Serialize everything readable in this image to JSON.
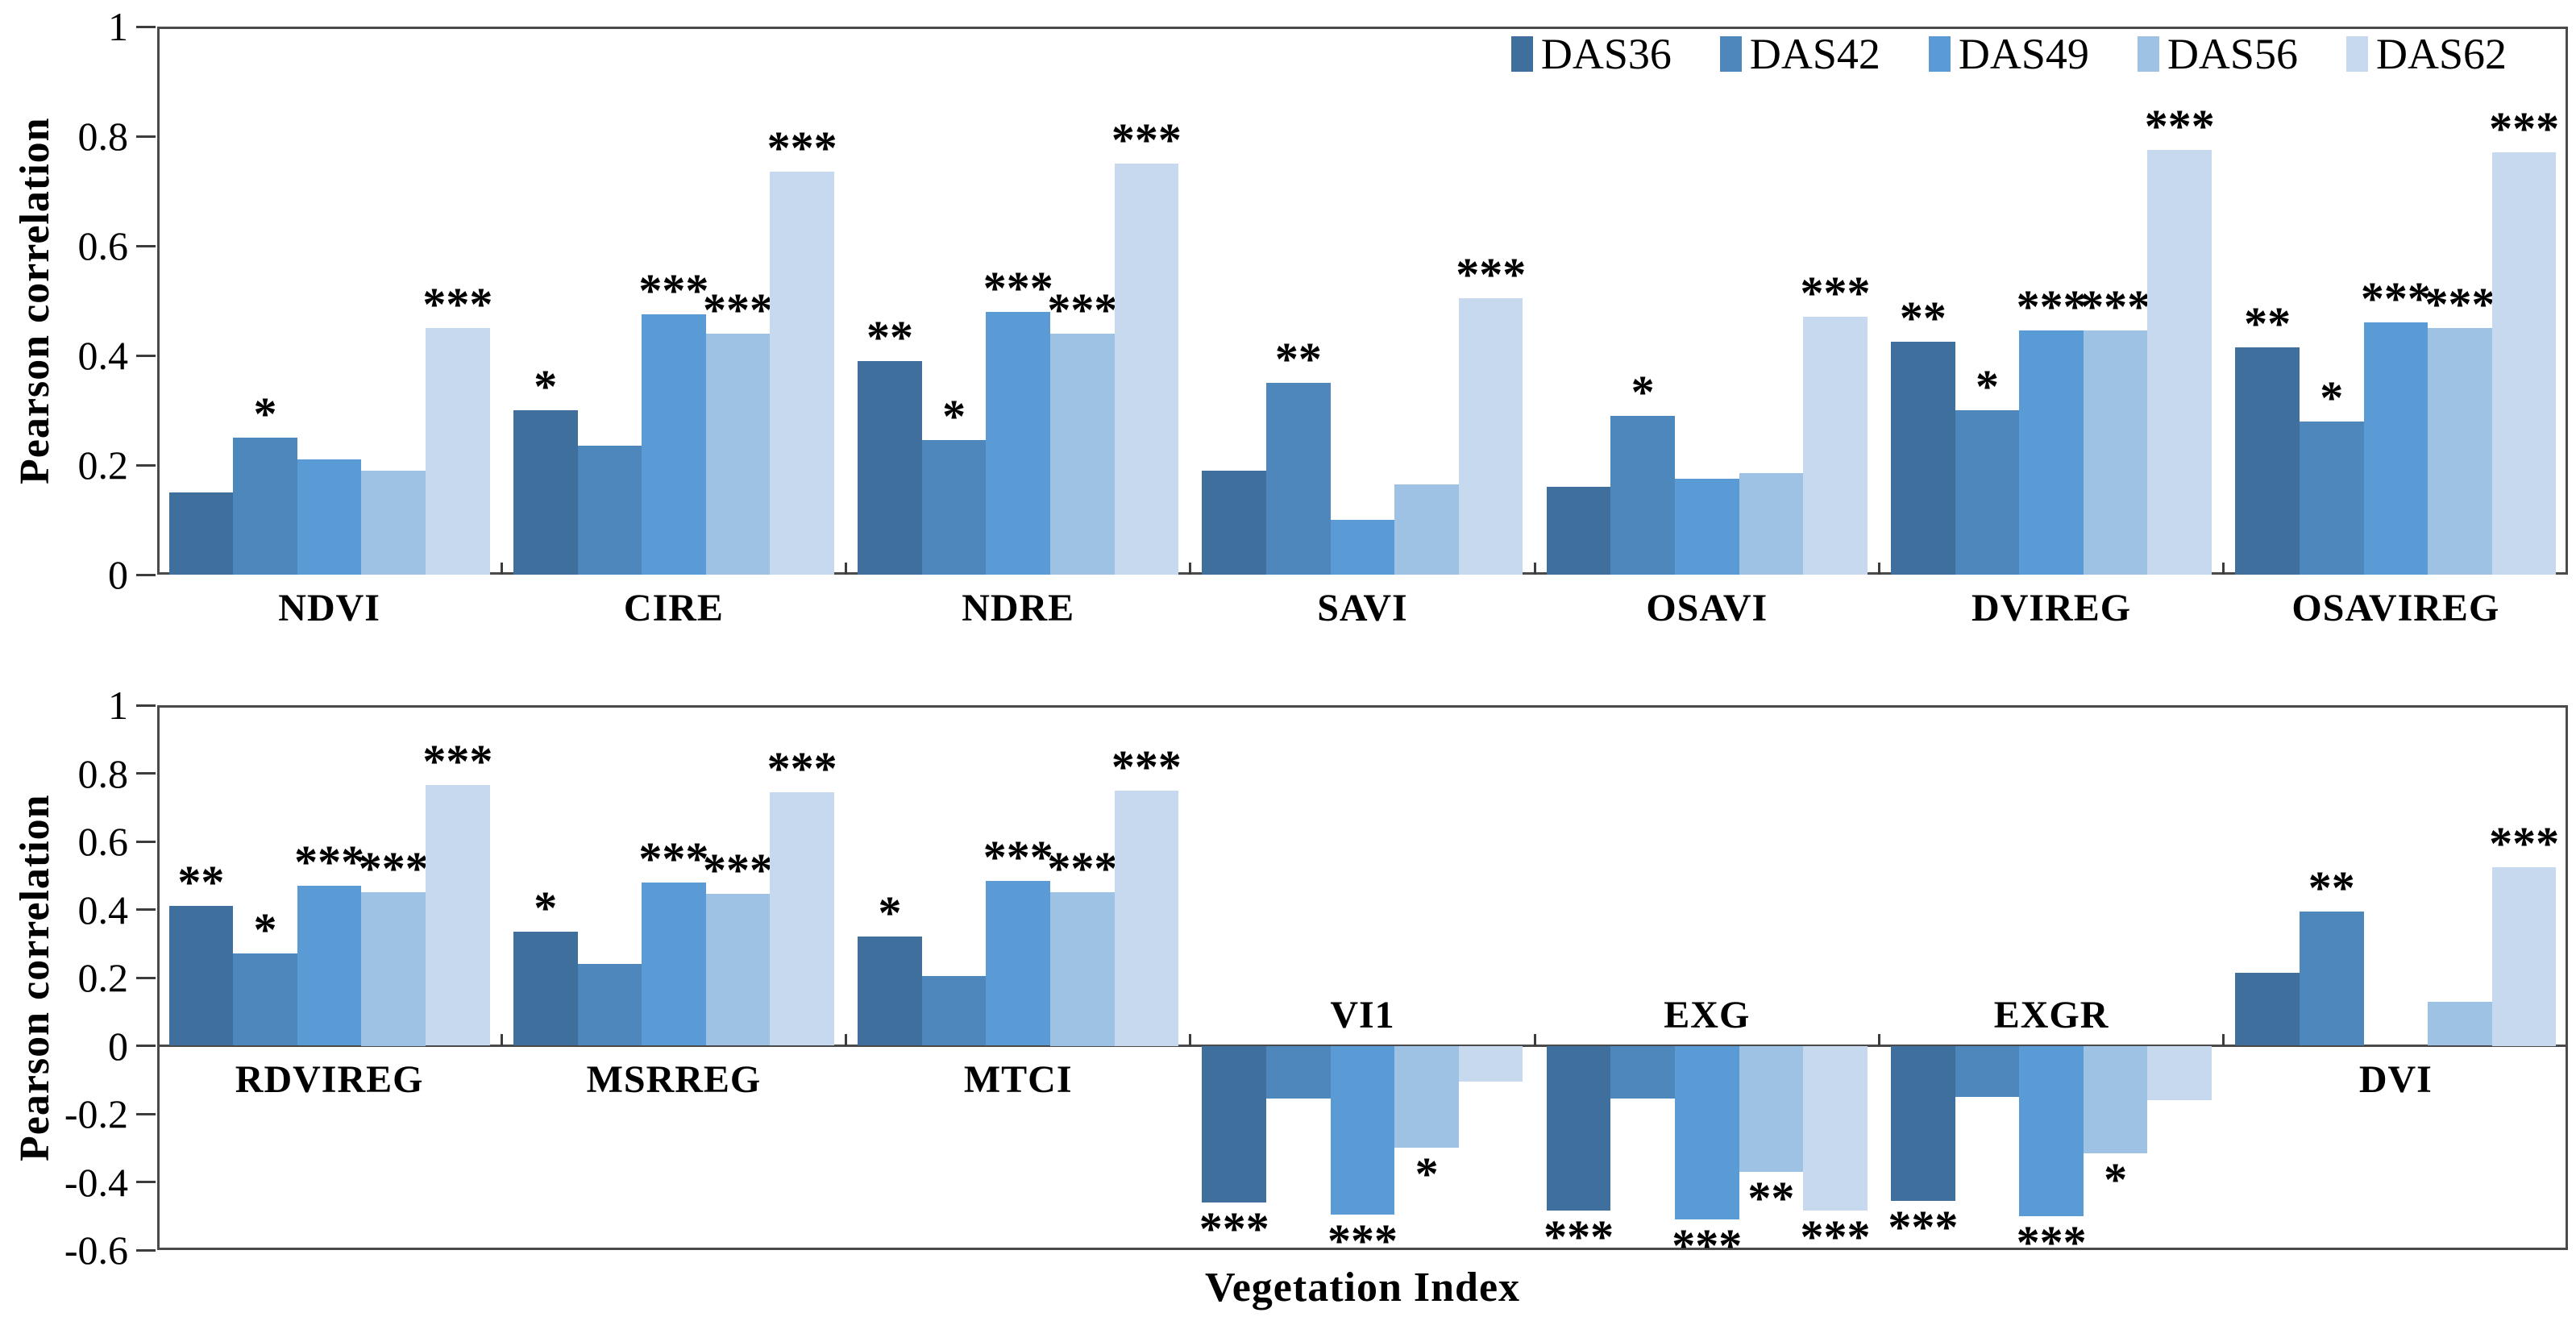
{
  "chart_data": {
    "type": "bar",
    "title": "",
    "ylabel": "Pearson correlation",
    "xlabel": "Vegetation Index",
    "grid": false,
    "legend_position": "top-right-inside",
    "series": [
      {
        "name": "DAS36",
        "color": "#3e6f9d"
      },
      {
        "name": "DAS42",
        "color": "#4d87bb"
      },
      {
        "name": "DAS49",
        "color": "#5b9bd5"
      },
      {
        "name": "DAS56",
        "color": "#9dc2e4"
      },
      {
        "name": "DAS62",
        "color": "#c6d9ef"
      }
    ],
    "panels": [
      {
        "ylim": [
          0,
          1
        ],
        "yticks": [
          {
            "v": 1,
            "label": "1"
          },
          {
            "v": 0.8,
            "label": "0.8"
          },
          {
            "v": 0.6,
            "label": "0.6"
          },
          {
            "v": 0.4,
            "label": "0.4"
          },
          {
            "v": 0.2,
            "label": "0.2"
          },
          {
            "v": 0,
            "label": "0"
          }
        ],
        "groups": [
          {
            "label": "NDVI",
            "values": [
              0.15,
              0.25,
              0.21,
              0.19,
              0.45
            ],
            "sig": [
              "",
              "*",
              "",
              "",
              "***"
            ]
          },
          {
            "label": "CIRE",
            "values": [
              0.3,
              0.235,
              0.475,
              0.44,
              0.735
            ],
            "sig": [
              "*",
              "",
              "***",
              "***",
              "***"
            ]
          },
          {
            "label": "NDRE",
            "values": [
              0.39,
              0.245,
              0.48,
              0.44,
              0.75
            ],
            "sig": [
              "**",
              "*",
              "***",
              "***",
              "***"
            ]
          },
          {
            "label": "SAVI",
            "values": [
              0.19,
              0.35,
              0.1,
              0.165,
              0.505
            ],
            "sig": [
              "",
              "**",
              "",
              "",
              "***"
            ]
          },
          {
            "label": "OSAVI",
            "values": [
              0.16,
              0.29,
              0.175,
              0.185,
              0.47
            ],
            "sig": [
              "",
              "*",
              "",
              "",
              "***"
            ]
          },
          {
            "label": "DVIREG",
            "values": [
              0.425,
              0.3,
              0.445,
              0.445,
              0.775
            ],
            "sig": [
              "**",
              "*",
              "***",
              "***",
              "***"
            ]
          },
          {
            "label": "OSAVIREG",
            "values": [
              0.415,
              0.28,
              0.46,
              0.45,
              0.77
            ],
            "sig": [
              "**",
              "*",
              "***",
              "***",
              "***"
            ]
          }
        ]
      },
      {
        "ylim": [
          -0.6,
          1
        ],
        "yticks": [
          {
            "v": 1,
            "label": "1"
          },
          {
            "v": 0.8,
            "label": "0.8"
          },
          {
            "v": 0.6,
            "label": "0.6"
          },
          {
            "v": 0.4,
            "label": "0.4"
          },
          {
            "v": 0.2,
            "label": "0.2"
          },
          {
            "v": 0,
            "label": "0"
          },
          {
            "v": -0.2,
            "label": "-0.2"
          },
          {
            "v": -0.4,
            "label": "-0.4"
          },
          {
            "v": -0.6,
            "label": "-0.6"
          }
        ],
        "groups": [
          {
            "label": "RDVIREG",
            "values": [
              0.41,
              0.27,
              0.47,
              0.45,
              0.765
            ],
            "sig": [
              "**",
              "*",
              "***",
              "***",
              "***"
            ]
          },
          {
            "label": "MSRREG",
            "values": [
              0.335,
              0.24,
              0.48,
              0.445,
              0.745
            ],
            "sig": [
              "*",
              "",
              "***",
              "***",
              "***"
            ]
          },
          {
            "label": "MTCI",
            "values": [
              0.32,
              0.205,
              0.485,
              0.45,
              0.75
            ],
            "sig": [
              "*",
              "",
              "***",
              "***",
              "***"
            ]
          },
          {
            "label": "VI1",
            "values": [
              -0.46,
              -0.155,
              -0.495,
              -0.3,
              -0.105
            ],
            "sig": [
              "***",
              "",
              "***",
              "*",
              ""
            ]
          },
          {
            "label": "EXG",
            "values": [
              -0.485,
              -0.155,
              -0.51,
              -0.37,
              -0.485
            ],
            "sig": [
              "***",
              "",
              "***",
              "**",
              "***"
            ]
          },
          {
            "label": "EXGR",
            "values": [
              -0.455,
              -0.15,
              -0.5,
              -0.315,
              -0.16
            ],
            "sig": [
              "***",
              "",
              "***",
              "*",
              ""
            ]
          },
          {
            "label": "DVI",
            "values": [
              0.215,
              0.395,
              0,
              0.13,
              0.525
            ],
            "sig": [
              "",
              "**",
              "",
              "",
              "***"
            ]
          }
        ]
      }
    ]
  }
}
